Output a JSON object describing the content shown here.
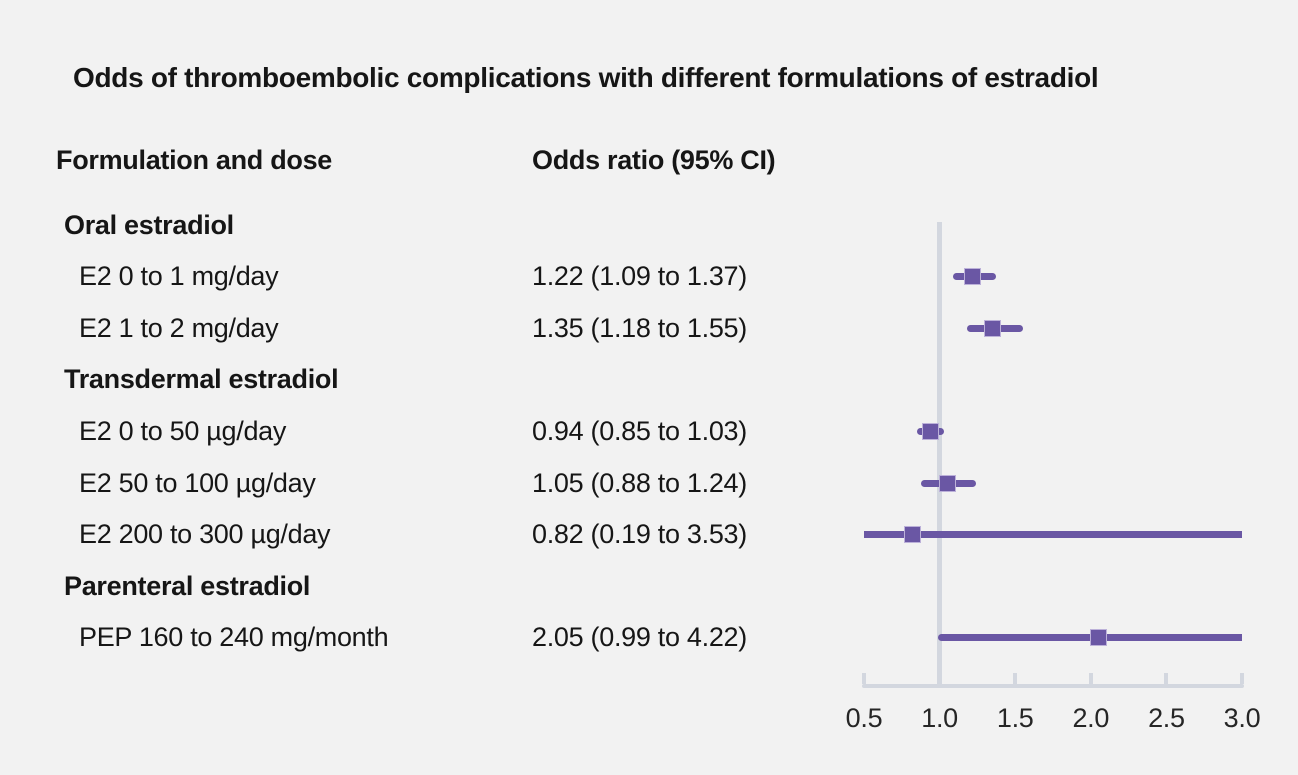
{
  "figure": {
    "title": "Odds of thromboembolic complications with different formulations of estradiol",
    "col1_header": "Formulation and dose",
    "col2_header": "Odds ratio (95% CI)"
  },
  "colors": {
    "background": "#f2f2f2",
    "text": "#161616",
    "purple": "#6a57a4",
    "marker_fill": "#6a57a4",
    "marker_border": "#bcb1d9",
    "axis_gray": "#d3d7df"
  },
  "chart_data": {
    "type": "forest",
    "title": "Odds of thromboembolic complications with different formulations of estradiol",
    "columns": [
      "Formulation and dose",
      "Odds ratio (95% CI)"
    ],
    "x_axis": {
      "min": 0.5,
      "max": 3.0,
      "ticks": [
        "0.5",
        "1.0",
        "1.5",
        "2.0",
        "2.5",
        "3.0"
      ],
      "tick_values": [
        0.5,
        1.0,
        1.5,
        2.0,
        2.5,
        3.0
      ],
      "reference_line": 1.0
    },
    "note": "Confidence intervals extending beyond the 0.5-3.0 axis range are clipped with flat line ends",
    "rows": [
      {
        "type": "section",
        "label": "Oral estradiol"
      },
      {
        "type": "item",
        "label": "E2 0 to 1 mg/day",
        "value_text": "1.22 (1.09 to 1.37)",
        "estimate": 1.22,
        "ci_low": 1.09,
        "ci_high": 1.37
      },
      {
        "type": "item",
        "label": "E2 1 to 2 mg/day",
        "value_text": "1.35 (1.18 to 1.55)",
        "estimate": 1.35,
        "ci_low": 1.18,
        "ci_high": 1.55
      },
      {
        "type": "section",
        "label": "Transdermal estradiol"
      },
      {
        "type": "item",
        "label": "E2 0 to 50 µg/day",
        "value_text": "0.94 (0.85 to 1.03)",
        "estimate": 0.94,
        "ci_low": 0.85,
        "ci_high": 1.03
      },
      {
        "type": "item",
        "label": "E2 50 to 100 µg/day",
        "value_text": "1.05 (0.88 to 1.24)",
        "estimate": 1.05,
        "ci_low": 0.88,
        "ci_high": 1.24
      },
      {
        "type": "item",
        "label": "E2 200 to 300 µg/day",
        "value_text": "0.82 (0.19 to 3.53)",
        "estimate": 0.82,
        "ci_low": 0.19,
        "ci_high": 3.53
      },
      {
        "type": "section",
        "label": "Parenteral estradiol"
      },
      {
        "type": "item",
        "label": "PEP 160 to 240 mg/month",
        "value_text": "2.05 (0.99 to 4.22)",
        "estimate": 2.05,
        "ci_low": 0.99,
        "ci_high": 4.22
      }
    ]
  }
}
